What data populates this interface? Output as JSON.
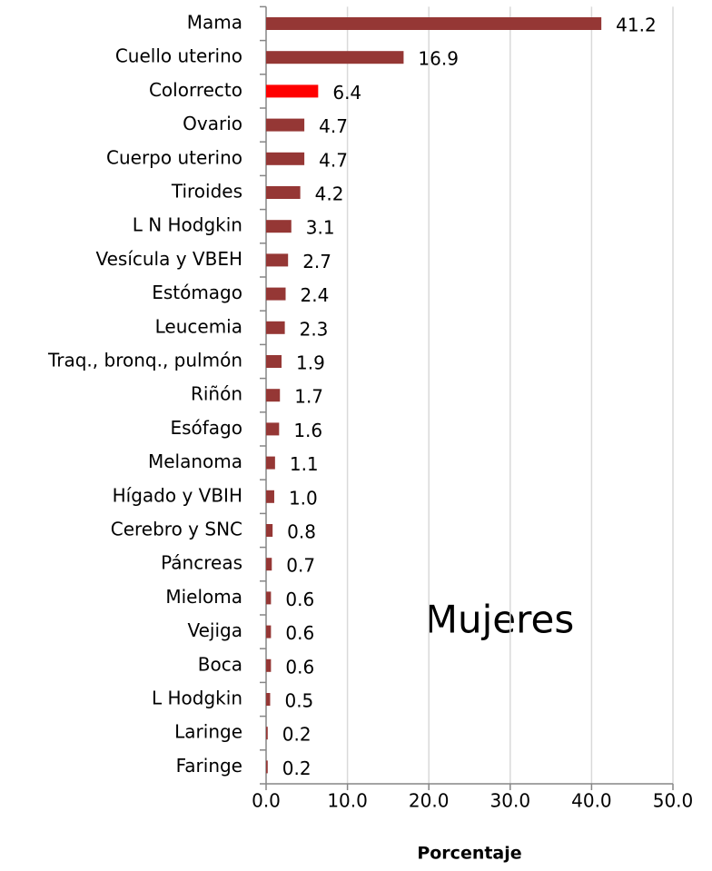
{
  "chart_data": {
    "type": "bar",
    "orientation": "horizontal",
    "categories": [
      "Mama",
      "Cuello uterino",
      "Colorrecto",
      "Ovario",
      "Cuerpo uterino",
      "Tiroides",
      "L N Hodgkin",
      "Vesícula y VBEH",
      "Estómago",
      "Leucemia",
      "Traq., bronq., pulmón",
      "Riñón",
      "Esófago",
      "Melanoma",
      "Hígado y VBIH",
      "Cerebro y SNC",
      "Páncreas",
      "Mieloma",
      "Vejiga",
      "Boca",
      "L Hodgkin",
      "Laringe",
      "Faringe"
    ],
    "values": [
      41.2,
      16.9,
      6.4,
      4.7,
      4.7,
      4.2,
      3.1,
      2.7,
      2.4,
      2.3,
      1.9,
      1.7,
      1.6,
      1.1,
      1.0,
      0.8,
      0.7,
      0.6,
      0.6,
      0.6,
      0.5,
      0.2,
      0.2
    ],
    "value_labels": [
      "41.2",
      "16.9",
      "6.4",
      "4.7",
      "4.7",
      "4.2",
      "3.1",
      "2.7",
      "2.4",
      "2.3",
      "1.9",
      "1.7",
      "1.6",
      "1.1",
      "1.0",
      "0.8",
      "0.7",
      "0.6",
      "0.6",
      "0.6",
      "0.5",
      "0.2",
      "0.2"
    ],
    "colors": [
      "#953735",
      "#953735",
      "#ff0000",
      "#953735",
      "#953735",
      "#953735",
      "#953735",
      "#953735",
      "#953735",
      "#953735",
      "#953735",
      "#953735",
      "#953735",
      "#953735",
      "#953735",
      "#953735",
      "#953735",
      "#953735",
      "#953735",
      "#953735",
      "#953735",
      "#953735",
      "#953735"
    ],
    "xlim": [
      0,
      50
    ],
    "xticks": [
      {
        "value": 0,
        "label": "0.0"
      },
      {
        "value": 10,
        "label": "10.0"
      },
      {
        "value": 20,
        "label": "20.0"
      },
      {
        "value": 30,
        "label": "30.0"
      },
      {
        "value": 40,
        "label": "40.0"
      },
      {
        "value": 50,
        "label": "50.0"
      }
    ],
    "x_label": "Porcentaje",
    "annotation": "Mujeres",
    "grid": true
  }
}
